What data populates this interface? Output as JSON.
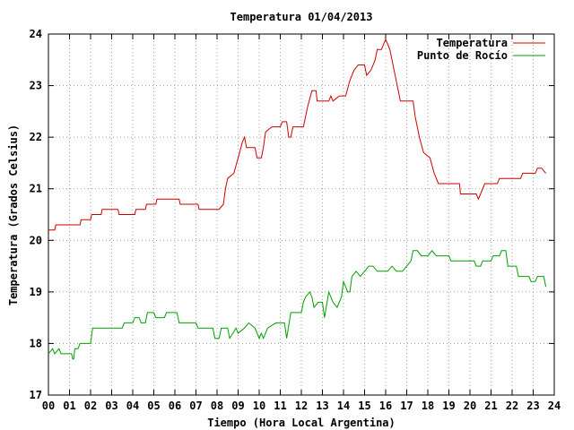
{
  "chart_data": {
    "type": "line",
    "title": "Temperatura 01/04/2013",
    "xlabel": "Tiempo (Hora Local Argentina)",
    "ylabel": "Temperatura (Grados Celsius)",
    "xlim": [
      0,
      24
    ],
    "ylim": [
      17,
      24
    ],
    "grid": true,
    "legend_position": "top-right",
    "x_ticks": [
      "00",
      "01",
      "02",
      "03",
      "04",
      "05",
      "06",
      "07",
      "08",
      "09",
      "10",
      "11",
      "12",
      "13",
      "14",
      "15",
      "16",
      "17",
      "18",
      "19",
      "20",
      "21",
      "22",
      "23",
      "24"
    ],
    "y_ticks": [
      "17",
      "18",
      "19",
      "20",
      "21",
      "22",
      "23",
      "24"
    ],
    "series": [
      {
        "name": "Temperatura",
        "color": "#cc0000",
        "points": [
          [
            0,
            20.2
          ],
          [
            0.3,
            20.2
          ],
          [
            0.35,
            20.3
          ],
          [
            1.5,
            20.3
          ],
          [
            1.55,
            20.4
          ],
          [
            2.0,
            20.4
          ],
          [
            2.05,
            20.5
          ],
          [
            2.5,
            20.5
          ],
          [
            2.55,
            20.6
          ],
          [
            3.3,
            20.6
          ],
          [
            3.35,
            20.5
          ],
          [
            4.1,
            20.5
          ],
          [
            4.15,
            20.6
          ],
          [
            4.6,
            20.6
          ],
          [
            4.65,
            20.7
          ],
          [
            5.1,
            20.7
          ],
          [
            5.15,
            20.8
          ],
          [
            6.2,
            20.8
          ],
          [
            6.25,
            20.7
          ],
          [
            7.1,
            20.7
          ],
          [
            7.15,
            20.6
          ],
          [
            8.1,
            20.6
          ],
          [
            8.3,
            20.7
          ],
          [
            8.4,
            21.0
          ],
          [
            8.5,
            21.2
          ],
          [
            8.8,
            21.3
          ],
          [
            9.0,
            21.6
          ],
          [
            9.2,
            21.9
          ],
          [
            9.3,
            22.0
          ],
          [
            9.4,
            21.8
          ],
          [
            9.8,
            21.8
          ],
          [
            9.9,
            21.6
          ],
          [
            10.1,
            21.6
          ],
          [
            10.2,
            21.8
          ],
          [
            10.3,
            22.1
          ],
          [
            10.6,
            22.2
          ],
          [
            11.0,
            22.2
          ],
          [
            11.1,
            22.3
          ],
          [
            11.3,
            22.3
          ],
          [
            11.4,
            22.0
          ],
          [
            11.5,
            22.0
          ],
          [
            11.6,
            22.2
          ],
          [
            11.8,
            22.2
          ],
          [
            12.1,
            22.2
          ],
          [
            12.3,
            22.6
          ],
          [
            12.5,
            22.9
          ],
          [
            12.7,
            22.9
          ],
          [
            12.75,
            22.7
          ],
          [
            13.3,
            22.7
          ],
          [
            13.4,
            22.8
          ],
          [
            13.5,
            22.7
          ],
          [
            13.8,
            22.8
          ],
          [
            14.1,
            22.8
          ],
          [
            14.3,
            23.1
          ],
          [
            14.5,
            23.3
          ],
          [
            14.7,
            23.4
          ],
          [
            15.0,
            23.4
          ],
          [
            15.1,
            23.2
          ],
          [
            15.3,
            23.3
          ],
          [
            15.5,
            23.5
          ],
          [
            15.6,
            23.7
          ],
          [
            15.8,
            23.7
          ],
          [
            16.0,
            23.9
          ],
          [
            16.2,
            23.7
          ],
          [
            16.4,
            23.3
          ],
          [
            16.6,
            22.9
          ],
          [
            16.7,
            22.7
          ],
          [
            17.3,
            22.7
          ],
          [
            17.4,
            22.4
          ],
          [
            17.6,
            22.0
          ],
          [
            17.8,
            21.7
          ],
          [
            18.1,
            21.6
          ],
          [
            18.3,
            21.3
          ],
          [
            18.5,
            21.1
          ],
          [
            19.5,
            21.1
          ],
          [
            19.55,
            20.9
          ],
          [
            20.3,
            20.9
          ],
          [
            20.4,
            20.8
          ],
          [
            20.5,
            20.9
          ],
          [
            20.7,
            21.1
          ],
          [
            21.3,
            21.1
          ],
          [
            21.4,
            21.2
          ],
          [
            22.4,
            21.2
          ],
          [
            22.5,
            21.3
          ],
          [
            23.1,
            21.3
          ],
          [
            23.2,
            21.4
          ],
          [
            23.4,
            21.4
          ],
          [
            23.6,
            21.3
          ]
        ]
      },
      {
        "name": "Punto de Rocío",
        "color": "#00a000",
        "points": [
          [
            0,
            17.8
          ],
          [
            0.2,
            17.9
          ],
          [
            0.3,
            17.8
          ],
          [
            0.5,
            17.9
          ],
          [
            0.6,
            17.8
          ],
          [
            1.1,
            17.8
          ],
          [
            1.15,
            17.7
          ],
          [
            1.2,
            17.7
          ],
          [
            1.25,
            17.9
          ],
          [
            1.4,
            17.9
          ],
          [
            1.5,
            18.0
          ],
          [
            2.0,
            18.0
          ],
          [
            2.1,
            18.3
          ],
          [
            3.5,
            18.3
          ],
          [
            3.6,
            18.4
          ],
          [
            4.0,
            18.4
          ],
          [
            4.1,
            18.5
          ],
          [
            4.3,
            18.5
          ],
          [
            4.4,
            18.4
          ],
          [
            4.6,
            18.4
          ],
          [
            4.7,
            18.6
          ],
          [
            5.0,
            18.6
          ],
          [
            5.1,
            18.5
          ],
          [
            5.5,
            18.5
          ],
          [
            5.6,
            18.6
          ],
          [
            6.1,
            18.6
          ],
          [
            6.2,
            18.4
          ],
          [
            7.0,
            18.4
          ],
          [
            7.1,
            18.3
          ],
          [
            7.8,
            18.3
          ],
          [
            7.9,
            18.1
          ],
          [
            8.1,
            18.1
          ],
          [
            8.2,
            18.3
          ],
          [
            8.5,
            18.3
          ],
          [
            8.6,
            18.1
          ],
          [
            8.9,
            18.3
          ],
          [
            9.0,
            18.2
          ],
          [
            9.3,
            18.3
          ],
          [
            9.5,
            18.4
          ],
          [
            9.8,
            18.3
          ],
          [
            10.0,
            18.1
          ],
          [
            10.1,
            18.2
          ],
          [
            10.2,
            18.1
          ],
          [
            10.4,
            18.3
          ],
          [
            10.8,
            18.4
          ],
          [
            11.2,
            18.4
          ],
          [
            11.3,
            18.1
          ],
          [
            11.5,
            18.6
          ],
          [
            12.0,
            18.6
          ],
          [
            12.1,
            18.8
          ],
          [
            12.2,
            18.9
          ],
          [
            12.4,
            19.0
          ],
          [
            12.5,
            18.9
          ],
          [
            12.6,
            18.7
          ],
          [
            12.8,
            18.8
          ],
          [
            13.0,
            18.8
          ],
          [
            13.1,
            18.5
          ],
          [
            13.3,
            19.0
          ],
          [
            13.5,
            18.8
          ],
          [
            13.7,
            18.7
          ],
          [
            13.9,
            18.9
          ],
          [
            14.0,
            19.2
          ],
          [
            14.2,
            19.0
          ],
          [
            14.3,
            19.0
          ],
          [
            14.4,
            19.3
          ],
          [
            14.6,
            19.4
          ],
          [
            14.8,
            19.3
          ],
          [
            15.0,
            19.4
          ],
          [
            15.2,
            19.5
          ],
          [
            15.4,
            19.5
          ],
          [
            15.6,
            19.4
          ],
          [
            15.9,
            19.4
          ],
          [
            16.1,
            19.4
          ],
          [
            16.3,
            19.5
          ],
          [
            16.5,
            19.4
          ],
          [
            16.8,
            19.4
          ],
          [
            17.0,
            19.5
          ],
          [
            17.2,
            19.6
          ],
          [
            17.3,
            19.8
          ],
          [
            17.5,
            19.8
          ],
          [
            17.7,
            19.7
          ],
          [
            18.0,
            19.7
          ],
          [
            18.2,
            19.8
          ],
          [
            18.4,
            19.7
          ],
          [
            19.0,
            19.7
          ],
          [
            19.1,
            19.6
          ],
          [
            20.2,
            19.6
          ],
          [
            20.3,
            19.5
          ],
          [
            20.5,
            19.5
          ],
          [
            20.6,
            19.6
          ],
          [
            21.0,
            19.6
          ],
          [
            21.1,
            19.7
          ],
          [
            21.4,
            19.7
          ],
          [
            21.5,
            19.8
          ],
          [
            21.7,
            19.8
          ],
          [
            21.8,
            19.5
          ],
          [
            22.2,
            19.5
          ],
          [
            22.3,
            19.3
          ],
          [
            22.8,
            19.3
          ],
          [
            22.9,
            19.2
          ],
          [
            23.1,
            19.2
          ],
          [
            23.2,
            19.3
          ],
          [
            23.5,
            19.3
          ],
          [
            23.6,
            19.1
          ]
        ]
      }
    ]
  }
}
